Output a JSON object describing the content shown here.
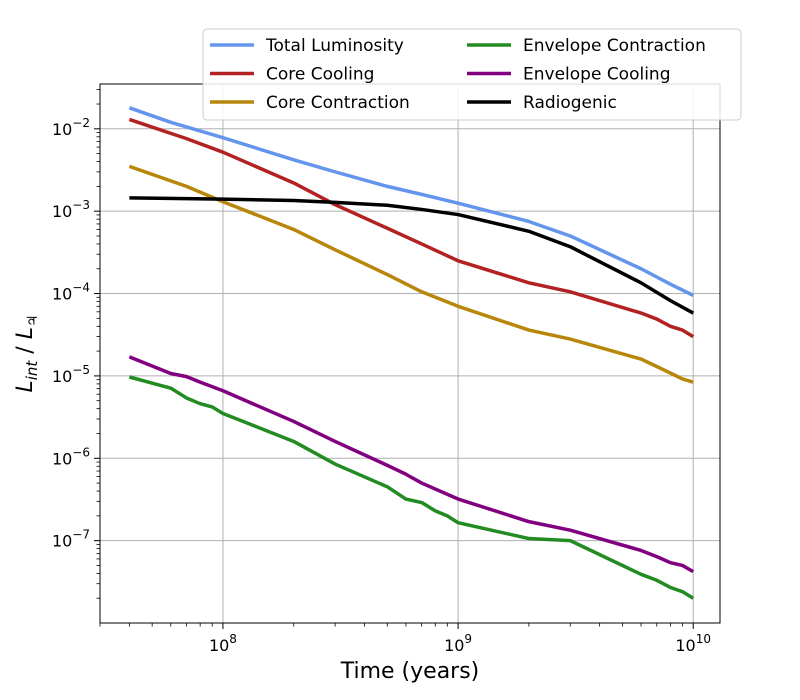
{
  "chart_data": {
    "type": "line",
    "title": "",
    "xlabel": "Time (years)",
    "ylabel_main": "L",
    "ylabel_main_sub": "int",
    "ylabel_sep": " / ",
    "ylabel_ref": "L",
    "ylabel_ref_sub": "♃",
    "xscale": "log",
    "yscale": "log",
    "xlim": [
      30000000,
      13000000000
    ],
    "ylim": [
      1e-08,
      0.035
    ],
    "grid": true,
    "legend_position": "top-right",
    "legend_columns": 2,
    "x_ticks": [
      {
        "value": 100000000,
        "base": "10",
        "exp": "8"
      },
      {
        "value": 1000000000,
        "base": "10",
        "exp": "9"
      },
      {
        "value": 10000000000,
        "base": "10",
        "exp": "10"
      }
    ],
    "y_ticks": [
      {
        "value": 1e-07,
        "base": "10",
        "exp": "−7"
      },
      {
        "value": 1e-06,
        "base": "10",
        "exp": "−6"
      },
      {
        "value": 1e-05,
        "base": "10",
        "exp": "−5"
      },
      {
        "value": 0.0001,
        "base": "10",
        "exp": "−4"
      },
      {
        "value": 0.001,
        "base": "10",
        "exp": "−3"
      },
      {
        "value": 0.01,
        "base": "10",
        "exp": "−2"
      }
    ],
    "series": [
      {
        "name": "Total Luminosity",
        "color": "#6495ed",
        "x": [
          40000000,
          60000000,
          100000000,
          200000000,
          300000000,
          500000000,
          700000000,
          1000000000,
          2000000000,
          3000000000,
          6000000000,
          8000000000,
          10000000000
        ],
        "y": [
          0.018,
          0.012,
          0.0078,
          0.0042,
          0.003,
          0.002,
          0.0016,
          0.00125,
          0.00075,
          0.0005,
          0.0002,
          0.00013,
          9.5e-05
        ]
      },
      {
        "name": "Core Cooling",
        "color": "#b22222",
        "x": [
          40000000,
          60000000,
          70000000,
          100000000,
          200000000,
          300000000,
          500000000,
          700000000,
          1000000000,
          2000000000,
          3000000000,
          6000000000,
          7000000000,
          8000000000,
          9000000000,
          10000000000
        ],
        "y": [
          0.013,
          0.0088,
          0.0076,
          0.0052,
          0.0022,
          0.0012,
          0.00062,
          0.0004,
          0.00025,
          0.000135,
          0.000105,
          5.8e-05,
          4.9e-05,
          4e-05,
          3.6e-05,
          3e-05
        ]
      },
      {
        "name": "Core Contraction",
        "color": "#b8860b",
        "x": [
          40000000,
          70000000,
          100000000,
          200000000,
          300000000,
          500000000,
          700000000,
          1000000000,
          2000000000,
          3000000000,
          6000000000,
          7000000000,
          9000000000,
          10000000000
        ],
        "y": [
          0.0035,
          0.002,
          0.0013,
          0.0006,
          0.00034,
          0.00017,
          0.000105,
          7e-05,
          3.6e-05,
          2.8e-05,
          1.6e-05,
          1.3e-05,
          9.2e-06,
          8.4e-06
        ]
      },
      {
        "name": "Envelope Contraction",
        "color": "#228b22",
        "x": [
          40000000,
          60000000,
          70000000,
          80000000,
          90000000,
          100000000,
          200000000,
          300000000,
          500000000,
          600000000,
          700000000,
          800000000,
          900000000,
          1000000000,
          2000000000,
          3000000000,
          6000000000,
          7000000000,
          8000000000,
          9000000000,
          10000000000
        ],
        "y": [
          9.7e-06,
          7.1e-06,
          5.4e-06,
          4.6e-06,
          4.2e-06,
          3.5e-06,
          1.6e-06,
          8.5e-07,
          4.5e-07,
          3.2e-07,
          2.9e-07,
          2.3e-07,
          2e-07,
          1.65e-07,
          1.06e-07,
          1e-07,
          3.9e-08,
          3.3e-08,
          2.7e-08,
          2.4e-08,
          2e-08
        ]
      },
      {
        "name": "Envelope Cooling",
        "color": "#800080",
        "x": [
          40000000,
          60000000,
          70000000,
          80000000,
          100000000,
          200000000,
          300000000,
          500000000,
          600000000,
          700000000,
          1000000000,
          2000000000,
          3000000000,
          6000000000,
          7000000000,
          8000000000,
          9000000000,
          10000000000
        ],
        "y": [
          1.7e-05,
          1.07e-05,
          9.8e-06,
          8.4e-06,
          6.6e-06,
          2.8e-06,
          1.6e-06,
          8.2e-07,
          6.4e-07,
          5e-07,
          3.2e-07,
          1.7e-07,
          1.34e-07,
          7.6e-08,
          6.4e-08,
          5.4e-08,
          5e-08,
          4.2e-08
        ]
      },
      {
        "name": "Radiogenic",
        "color": "#000000",
        "x": [
          40000000,
          100000000,
          200000000,
          300000000,
          500000000,
          700000000,
          1000000000,
          2000000000,
          3000000000,
          6000000000,
          8000000000,
          10000000000
        ],
        "y": [
          0.00145,
          0.0014,
          0.00135,
          0.00128,
          0.00118,
          0.00105,
          0.00091,
          0.00057,
          0.00037,
          0.000135,
          8.2e-05,
          5.8e-05
        ]
      }
    ]
  }
}
